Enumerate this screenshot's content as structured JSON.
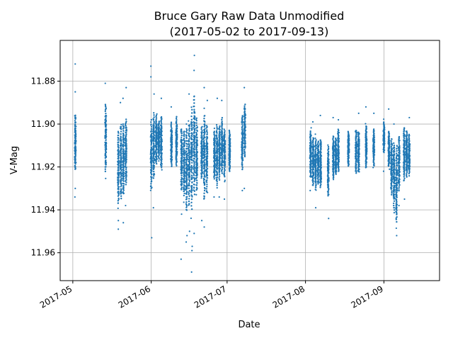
{
  "chart_data": {
    "type": "scatter",
    "title": "Bruce Gary Raw Data Unmodified",
    "subtitle": "(2017-05-02 to 2017-09-13)",
    "xlabel": "Date",
    "ylabel": "V-Mag",
    "y_axis_inverted": true,
    "ylim": [
      11.973,
      11.861
    ],
    "xlim": [
      "2017-04-26",
      "2017-09-23"
    ],
    "x_ticks": [
      "2017-05",
      "2017-06",
      "2017-07",
      "2017-08",
      "2017-09"
    ],
    "y_ticks": [
      "11.88",
      "11.90",
      "11.92",
      "11.94",
      "11.96"
    ],
    "grid": true,
    "marker_color": "#1f77b4",
    "clusters": [
      {
        "date": "2017-05-02",
        "y_lo": 11.892,
        "y_hi": 11.925,
        "outliers": [
          11.872,
          11.885,
          11.93,
          11.934
        ]
      },
      {
        "date": "2017-05-14",
        "y_lo": 11.886,
        "y_hi": 11.927,
        "outliers": [
          11.881
        ]
      },
      {
        "date": "2017-05-19",
        "y_lo": 11.899,
        "y_hi": 11.942,
        "outliers": [
          11.945,
          11.949
        ]
      },
      {
        "date": "2017-05-20",
        "y_lo": 11.896,
        "y_hi": 11.94,
        "outliers": [
          11.89
        ]
      },
      {
        "date": "2017-05-21",
        "y_lo": 11.895,
        "y_hi": 11.937,
        "outliers": [
          11.888,
          11.946
        ]
      },
      {
        "date": "2017-05-22",
        "y_lo": 11.893,
        "y_hi": 11.933,
        "outliers": [
          11.883,
          11.938
        ]
      },
      {
        "date": "2017-06-01",
        "y_lo": 11.893,
        "y_hi": 11.935,
        "outliers": [
          11.873,
          11.878,
          11.953
        ]
      },
      {
        "date": "2017-06-02",
        "y_lo": 11.89,
        "y_hi": 11.93,
        "outliers": [
          11.886,
          11.939
        ]
      },
      {
        "date": "2017-06-03",
        "y_lo": 11.893,
        "y_hi": 11.922,
        "outliers": []
      },
      {
        "date": "2017-06-04",
        "y_lo": 11.896,
        "y_hi": 11.919,
        "outliers": []
      },
      {
        "date": "2017-06-05",
        "y_lo": 11.893,
        "y_hi": 11.924,
        "outliers": [
          11.888
        ]
      },
      {
        "date": "2017-06-09",
        "y_lo": 11.896,
        "y_hi": 11.923,
        "outliers": [
          11.892
        ]
      },
      {
        "date": "2017-06-11",
        "y_lo": 11.893,
        "y_hi": 11.923,
        "outliers": []
      },
      {
        "date": "2017-06-13",
        "y_lo": 11.898,
        "y_hi": 11.935,
        "outliers": [
          11.942,
          11.963
        ]
      },
      {
        "date": "2017-06-14",
        "y_lo": 11.899,
        "y_hi": 11.938,
        "outliers": [
          11.93
        ]
      },
      {
        "date": "2017-06-15",
        "y_lo": 11.897,
        "y_hi": 11.946,
        "outliers": [
          11.952,
          11.955,
          11.9
        ]
      },
      {
        "date": "2017-06-16",
        "y_lo": 11.895,
        "y_hi": 11.943,
        "outliers": [
          11.886,
          11.95
        ]
      },
      {
        "date": "2017-06-17",
        "y_lo": 11.886,
        "y_hi": 11.947,
        "outliers": [
          11.957,
          11.959,
          11.969
        ]
      },
      {
        "date": "2017-06-18",
        "y_lo": 11.88,
        "y_hi": 11.94,
        "outliers": [
          11.868,
          11.875,
          11.951
        ]
      },
      {
        "date": "2017-06-19",
        "y_lo": 11.892,
        "y_hi": 11.936,
        "outliers": [
          11.93
        ]
      },
      {
        "date": "2017-06-21",
        "y_lo": 11.898,
        "y_hi": 11.928,
        "outliers": [
          11.945
        ]
      },
      {
        "date": "2017-06-22",
        "y_lo": 11.89,
        "y_hi": 11.941,
        "outliers": [
          11.883,
          11.948
        ]
      },
      {
        "date": "2017-06-23",
        "y_lo": 11.896,
        "y_hi": 11.936,
        "outliers": [
          11.889
        ]
      },
      {
        "date": "2017-06-26",
        "y_lo": 11.9,
        "y_hi": 11.929,
        "outliers": [
          11.934
        ]
      },
      {
        "date": "2017-06-27",
        "y_lo": 11.896,
        "y_hi": 11.933,
        "outliers": [
          11.888
        ]
      },
      {
        "date": "2017-06-28",
        "y_lo": 11.897,
        "y_hi": 11.93,
        "outliers": [
          11.934
        ]
      },
      {
        "date": "2017-06-29",
        "y_lo": 11.893,
        "y_hi": 11.927,
        "outliers": [
          11.889
        ]
      },
      {
        "date": "2017-06-30",
        "y_lo": 11.899,
        "y_hi": 11.928,
        "outliers": [
          11.935
        ]
      },
      {
        "date": "2017-07-02",
        "y_lo": 11.9,
        "y_hi": 11.925,
        "outliers": []
      },
      {
        "date": "2017-07-07",
        "y_lo": 11.893,
        "y_hi": 11.925,
        "outliers": [
          11.931
        ]
      },
      {
        "date": "2017-07-08",
        "y_lo": 11.887,
        "y_hi": 11.919,
        "outliers": [
          11.883,
          11.93
        ]
      },
      {
        "date": "2017-08-03",
        "y_lo": 11.9,
        "y_hi": 11.928,
        "outliers": [
          11.931
        ]
      },
      {
        "date": "2017-08-04",
        "y_lo": 11.903,
        "y_hi": 11.932,
        "outliers": [
          11.899
        ]
      },
      {
        "date": "2017-08-05",
        "y_lo": 11.904,
        "y_hi": 11.933,
        "outliers": [
          11.939
        ]
      },
      {
        "date": "2017-08-06",
        "y_lo": 11.905,
        "y_hi": 11.931,
        "outliers": []
      },
      {
        "date": "2017-08-07",
        "y_lo": 11.904,
        "y_hi": 11.933,
        "outliers": [
          11.896
        ]
      },
      {
        "date": "2017-08-10",
        "y_lo": 11.907,
        "y_hi": 11.937,
        "outliers": [
          11.944
        ]
      },
      {
        "date": "2017-08-12",
        "y_lo": 11.903,
        "y_hi": 11.928,
        "outliers": [
          11.897
        ]
      },
      {
        "date": "2017-08-13",
        "y_lo": 11.904,
        "y_hi": 11.926,
        "outliers": []
      },
      {
        "date": "2017-08-14",
        "y_lo": 11.9,
        "y_hi": 11.925,
        "outliers": [
          11.898
        ]
      },
      {
        "date": "2017-08-18",
        "y_lo": 11.901,
        "y_hi": 11.922,
        "outliers": []
      },
      {
        "date": "2017-08-21",
        "y_lo": 11.9,
        "y_hi": 11.926,
        "outliers": []
      },
      {
        "date": "2017-08-22",
        "y_lo": 11.901,
        "y_hi": 11.925,
        "outliers": [
          11.895
        ]
      },
      {
        "date": "2017-08-25",
        "y_lo": 11.898,
        "y_hi": 11.923,
        "outliers": [
          11.892
        ]
      },
      {
        "date": "2017-08-28",
        "y_lo": 11.9,
        "y_hi": 11.922,
        "outliers": [
          11.895
        ]
      },
      {
        "date": "2017-09-01",
        "y_lo": 11.897,
        "y_hi": 11.915,
        "outliers": [
          11.922
        ]
      },
      {
        "date": "2017-09-03",
        "y_lo": 11.901,
        "y_hi": 11.922,
        "outliers": [
          11.893
        ]
      },
      {
        "date": "2017-09-04",
        "y_lo": 11.903,
        "y_hi": 11.937,
        "outliers": [
          11.93
        ]
      },
      {
        "date": "2017-09-05",
        "y_lo": 11.904,
        "y_hi": 11.945,
        "outliers": [
          11.9
        ]
      },
      {
        "date": "2017-09-06",
        "y_lo": 11.906,
        "y_hi": 11.951,
        "outliers": [
          11.952
        ]
      },
      {
        "date": "2017-09-07",
        "y_lo": 11.902,
        "y_hi": 11.935,
        "outliers": [
          11.938
        ]
      },
      {
        "date": "2017-09-09",
        "y_lo": 11.898,
        "y_hi": 11.93,
        "outliers": [
          11.935
        ]
      },
      {
        "date": "2017-09-10",
        "y_lo": 11.9,
        "y_hi": 11.928,
        "outliers": []
      },
      {
        "date": "2017-09-11",
        "y_lo": 11.902,
        "y_hi": 11.926,
        "outliers": [
          11.897
        ]
      }
    ]
  }
}
